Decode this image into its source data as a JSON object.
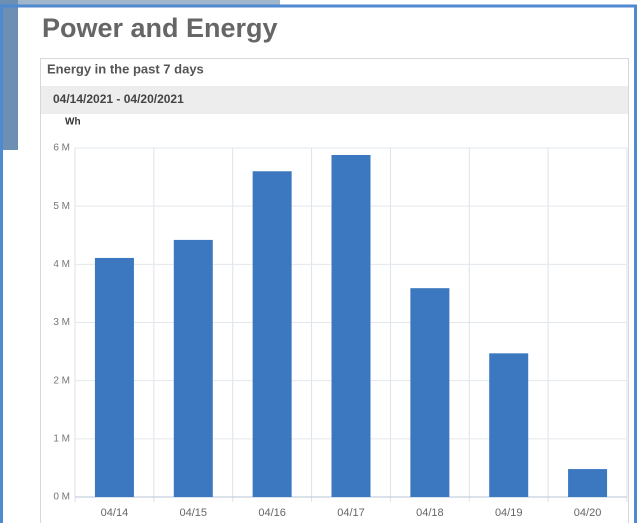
{
  "page": {
    "title": "Power and Energy",
    "panel_title": "Energy in the past 7 days",
    "date_range": "04/14/2021 - 04/20/2021"
  },
  "chart_data": {
    "type": "bar",
    "y_label": "Wh",
    "categories": [
      "04/14",
      "04/15",
      "04/16",
      "04/17",
      "04/18",
      "04/19",
      "04/20"
    ],
    "values": [
      4110000,
      4420000,
      5600000,
      5880000,
      3590000,
      2470000,
      480000
    ],
    "color": "#3b78bf",
    "ylim": [
      0,
      6000000
    ],
    "yticks": [
      {
        "value": 0,
        "label": "0 M"
      },
      {
        "value": 1000000,
        "label": "1 M"
      },
      {
        "value": 2000000,
        "label": "2 M"
      },
      {
        "value": 3000000,
        "label": "3 M"
      },
      {
        "value": 4000000,
        "label": "4 M"
      },
      {
        "value": 5000000,
        "label": "5 M"
      },
      {
        "value": 6000000,
        "label": "6 M"
      }
    ],
    "grid": true
  }
}
